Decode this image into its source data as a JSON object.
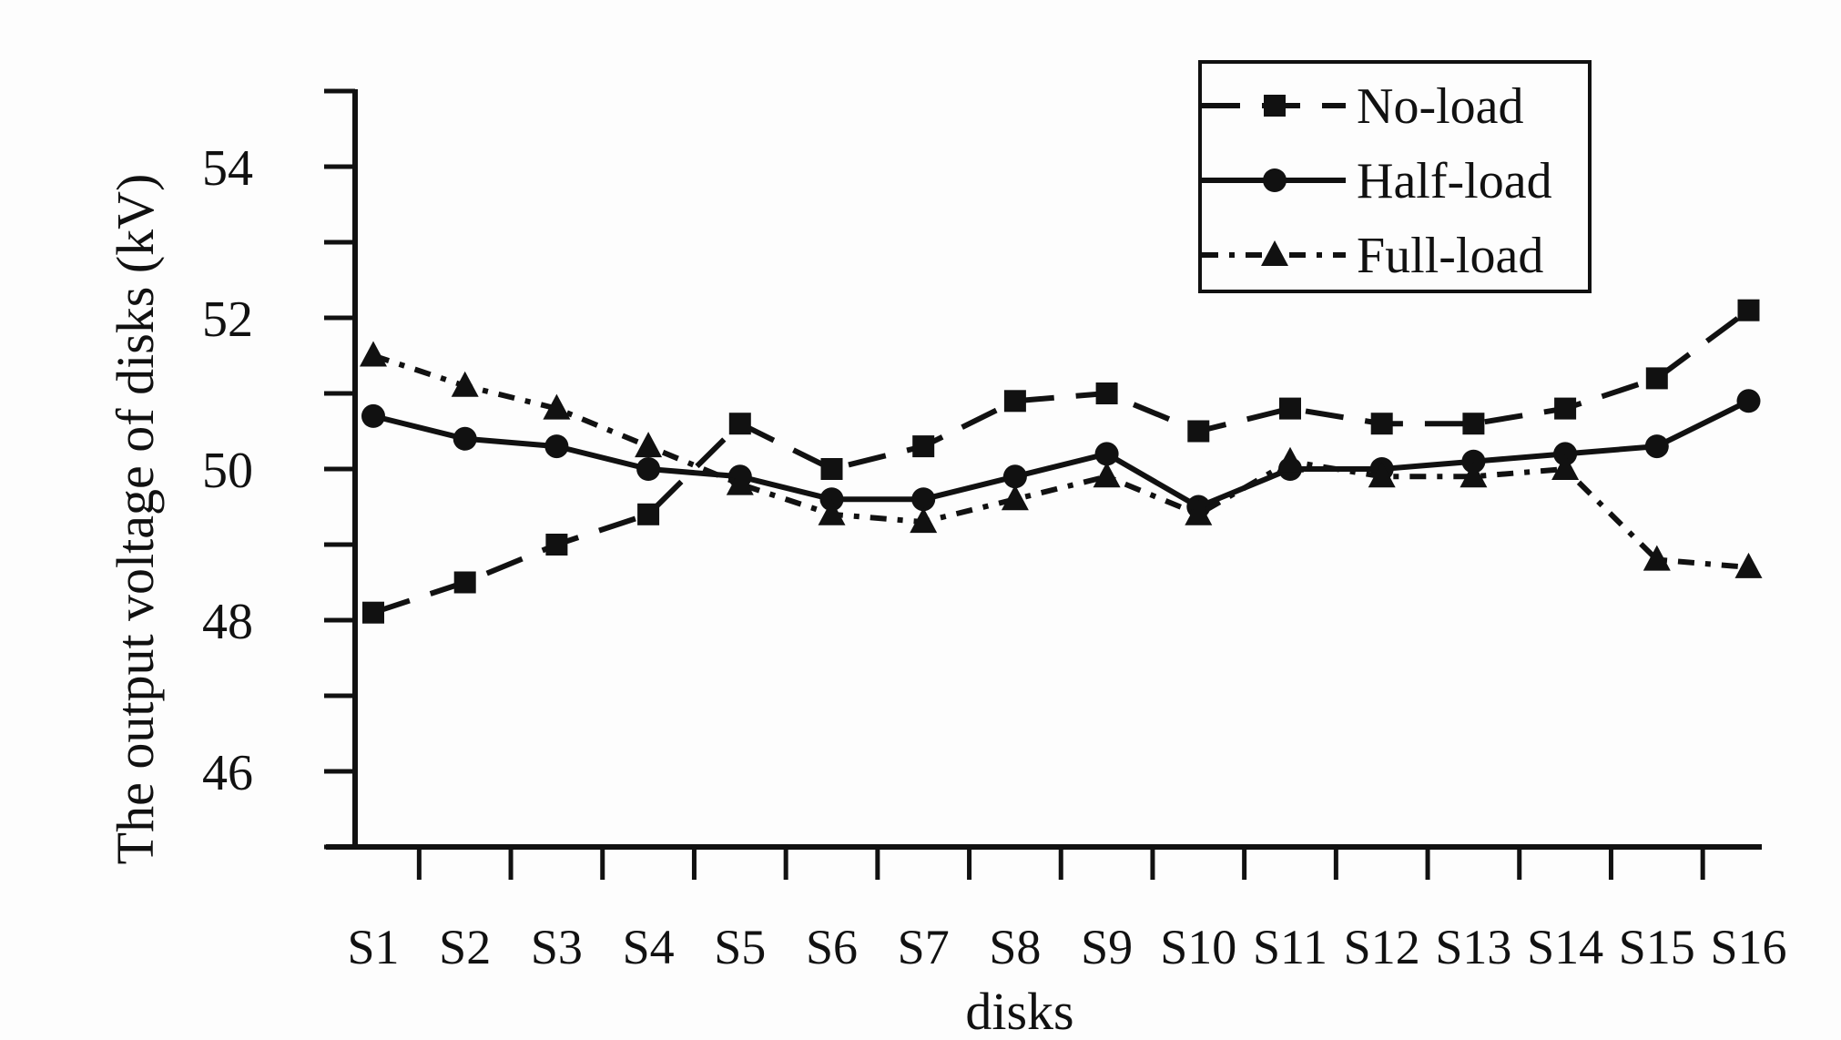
{
  "chart_data": {
    "type": "line",
    "xlabel": "disks",
    "ylabel": "The output voltage of disks (kV)",
    "categories": [
      "S1",
      "S2",
      "S3",
      "S4",
      "S5",
      "S6",
      "S7",
      "S8",
      "S9",
      "S10",
      "S11",
      "S12",
      "S13",
      "S14",
      "S15",
      "S16"
    ],
    "ylim": [
      45,
      55
    ],
    "yticks": [
      46,
      48,
      50,
      52,
      54
    ],
    "grid": false,
    "legend_position": "top-right",
    "series": [
      {
        "name": "No-load",
        "line_style": "long-dash",
        "marker": "square",
        "values": [
          48.1,
          48.5,
          49.0,
          49.4,
          50.6,
          50.0,
          50.3,
          50.9,
          51.0,
          50.5,
          50.8,
          50.6,
          50.6,
          50.8,
          51.2,
          52.1
        ]
      },
      {
        "name": "Half-load",
        "line_style": "solid",
        "marker": "circle",
        "values": [
          50.7,
          50.4,
          50.3,
          50.0,
          49.9,
          49.6,
          49.6,
          49.9,
          50.2,
          49.5,
          50.0,
          50.0,
          50.1,
          50.2,
          50.3,
          50.9
        ]
      },
      {
        "name": "Full-load",
        "line_style": "dash-dot",
        "marker": "triangle",
        "values": [
          51.5,
          51.1,
          50.8,
          50.3,
          49.8,
          49.4,
          49.3,
          49.6,
          49.9,
          49.4,
          50.1,
          49.9,
          49.9,
          50.0,
          48.8,
          48.7
        ]
      }
    ],
    "colors": {
      "ink": "#111111",
      "background": "#fdfdfd"
    }
  }
}
